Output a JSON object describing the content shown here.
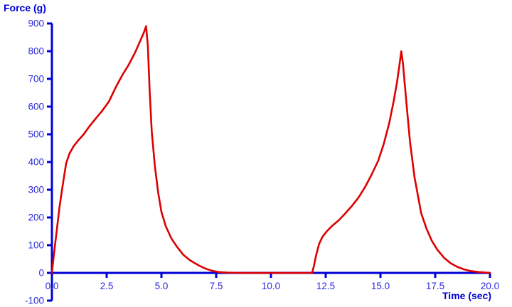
{
  "chart_data": {
    "type": "line",
    "title": "",
    "xlabel": "Time (sec)",
    "ylabel": "Force (g)",
    "xlim": [
      0,
      20
    ],
    "ylim": [
      -100,
      900
    ],
    "grid": false,
    "legend": "none",
    "colors": {
      "axis": "#0000d8",
      "tick_text": "#2b2be0",
      "line": "#dd0000",
      "background": "#ffffff"
    },
    "x_tick_values": [
      0,
      2.5,
      5,
      7.5,
      10,
      12.5,
      15,
      17.5,
      20
    ],
    "x_tick_labels": [
      "0.0",
      "2.5",
      "5.0",
      "7.5",
      "10.0",
      "12.5",
      "15.0",
      "17.5",
      "20.0"
    ],
    "y_tick_values": [
      -100,
      0,
      100,
      200,
      300,
      400,
      500,
      600,
      700,
      800,
      900
    ],
    "y_tick_labels": [
      "-100",
      "0",
      "100",
      "200",
      "300",
      "400",
      "500",
      "600",
      "700",
      "800",
      "900"
    ],
    "series": [
      {
        "name": "Force",
        "color": "#dd0000",
        "points": [
          [
            0,
            0
          ],
          [
            0.08,
            60
          ],
          [
            0.2,
            140
          ],
          [
            0.35,
            240
          ],
          [
            0.5,
            320
          ],
          [
            0.65,
            395
          ],
          [
            0.8,
            430
          ],
          [
            1.0,
            458
          ],
          [
            1.2,
            478
          ],
          [
            1.45,
            500
          ],
          [
            1.7,
            528
          ],
          [
            2.0,
            557
          ],
          [
            2.3,
            585
          ],
          [
            2.6,
            618
          ],
          [
            2.9,
            667
          ],
          [
            3.2,
            712
          ],
          [
            3.5,
            750
          ],
          [
            3.8,
            795
          ],
          [
            4.05,
            840
          ],
          [
            4.2,
            868
          ],
          [
            4.3,
            890
          ],
          [
            4.38,
            820
          ],
          [
            4.46,
            660
          ],
          [
            4.56,
            510
          ],
          [
            4.7,
            385
          ],
          [
            4.85,
            290
          ],
          [
            5.0,
            220
          ],
          [
            5.2,
            168
          ],
          [
            5.45,
            125
          ],
          [
            5.7,
            95
          ],
          [
            6.0,
            65
          ],
          [
            6.3,
            46
          ],
          [
            6.7,
            27
          ],
          [
            7.0,
            16
          ],
          [
            7.3,
            8
          ],
          [
            7.6,
            3
          ],
          [
            8.0,
            1
          ],
          [
            8.5,
            0
          ],
          [
            9.5,
            0
          ],
          [
            10.5,
            0
          ],
          [
            11.5,
            0
          ],
          [
            11.88,
            0
          ],
          [
            11.96,
            25
          ],
          [
            12.06,
            62
          ],
          [
            12.2,
            105
          ],
          [
            12.35,
            130
          ],
          [
            12.55,
            150
          ],
          [
            12.8,
            170
          ],
          [
            13.1,
            190
          ],
          [
            13.4,
            215
          ],
          [
            13.7,
            242
          ],
          [
            14.0,
            272
          ],
          [
            14.3,
            310
          ],
          [
            14.6,
            355
          ],
          [
            14.9,
            405
          ],
          [
            15.15,
            465
          ],
          [
            15.4,
            540
          ],
          [
            15.6,
            618
          ],
          [
            15.75,
            685
          ],
          [
            15.85,
            740
          ],
          [
            15.95,
            800
          ],
          [
            16.03,
            755
          ],
          [
            16.1,
            690
          ],
          [
            16.2,
            600
          ],
          [
            16.35,
            472
          ],
          [
            16.56,
            344
          ],
          [
            16.86,
            215
          ],
          [
            17.1,
            160
          ],
          [
            17.35,
            115
          ],
          [
            17.6,
            83
          ],
          [
            17.9,
            55
          ],
          [
            18.2,
            35
          ],
          [
            18.5,
            22
          ],
          [
            18.8,
            13
          ],
          [
            19.1,
            7
          ],
          [
            19.5,
            3
          ],
          [
            20.0,
            0
          ]
        ]
      }
    ]
  }
}
